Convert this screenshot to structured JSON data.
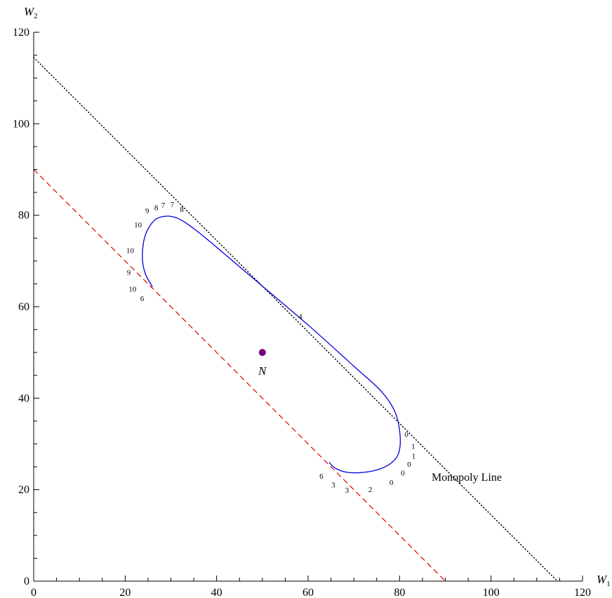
{
  "chart_data": {
    "type": "line",
    "xlabel": "W",
    "xlabel_sub": "1",
    "ylabel": "W",
    "ylabel_sub": "2",
    "xlim": [
      0,
      120
    ],
    "ylim": [
      0,
      120
    ],
    "xticks": [
      0,
      20,
      40,
      60,
      80,
      100,
      120
    ],
    "yticks": [
      0,
      20,
      40,
      60,
      80,
      100,
      120
    ],
    "grid": false,
    "series": [
      {
        "name": "Monopoly Line",
        "style": "dotted",
        "color": "#000000",
        "points": [
          [
            0,
            114.5
          ],
          [
            114.5,
            0
          ]
        ]
      },
      {
        "style": "dashed",
        "color": "#dd0000",
        "points": [
          [
            0,
            90
          ],
          [
            90,
            0
          ]
        ]
      },
      {
        "style": "solid",
        "color": "#0000dd",
        "points": [
          [
            26,
            64.3
          ],
          [
            24.5,
            67
          ],
          [
            23.8,
            70
          ],
          [
            24,
            74
          ],
          [
            25,
            77
          ],
          [
            26.8,
            79.2
          ],
          [
            29,
            79.8
          ],
          [
            31,
            79.5
          ],
          [
            33,
            78.5
          ],
          [
            36,
            76.3
          ],
          [
            40,
            73
          ],
          [
            50,
            64.5
          ],
          [
            60,
            56
          ],
          [
            70,
            47
          ],
          [
            76,
            41.5
          ],
          [
            79,
            37
          ],
          [
            80.1,
            32
          ],
          [
            79.8,
            28
          ],
          [
            78,
            25.7
          ],
          [
            75,
            24.3
          ],
          [
            71,
            23.7
          ],
          [
            68,
            23.9
          ],
          [
            65.8,
            24.8
          ],
          [
            64.6,
            26
          ]
        ]
      }
    ],
    "point": {
      "label": "N",
      "x": 50,
      "y": 50,
      "color": "#7a0080"
    },
    "annotations": [
      {
        "text": "Monopoly Line",
        "x": 87,
        "y": 22.5,
        "size": "large"
      },
      {
        "text": "9",
        "x": 24.8,
        "y": 80.8
      },
      {
        "text": "8",
        "x": 26.8,
        "y": 81.5
      },
      {
        "text": "7",
        "x": 28.3,
        "y": 82
      },
      {
        "text": "7",
        "x": 30.3,
        "y": 82.2
      },
      {
        "text": "8",
        "x": 32.4,
        "y": 81.1
      },
      {
        "text": "10",
        "x": 22.8,
        "y": 77.7
      },
      {
        "text": "10",
        "x": 21.1,
        "y": 72.1
      },
      {
        "text": "9",
        "x": 20.8,
        "y": 67.3
      },
      {
        "text": "10",
        "x": 21.6,
        "y": 63.7
      },
      {
        "text": "6",
        "x": 23.7,
        "y": 61.6
      },
      {
        "text": "4",
        "x": 58.3,
        "y": 57.7
      },
      {
        "text": "0",
        "x": 81.5,
        "y": 31.9
      },
      {
        "text": "1",
        "x": 83,
        "y": 29.3
      },
      {
        "text": "1",
        "x": 83.1,
        "y": 27.2
      },
      {
        "text": "0",
        "x": 82.1,
        "y": 25.4
      },
      {
        "text": "0",
        "x": 80.7,
        "y": 23.5
      },
      {
        "text": "0",
        "x": 78.2,
        "y": 21.4
      },
      {
        "text": "2",
        "x": 73.6,
        "y": 19.9
      },
      {
        "text": "3",
        "x": 68.5,
        "y": 19.7
      },
      {
        "text": "3",
        "x": 65.5,
        "y": 20.9
      },
      {
        "text": "6",
        "x": 62.9,
        "y": 22.8
      }
    ]
  }
}
